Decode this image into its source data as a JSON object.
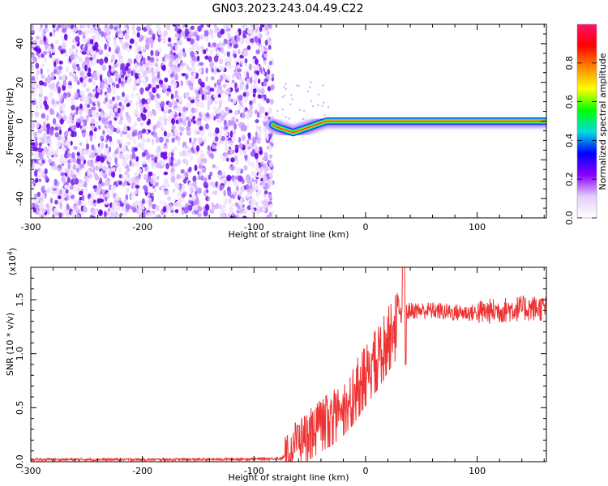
{
  "title": "GN03.2023.243.04.49.C22",
  "chart_data": [
    {
      "type": "heatmap",
      "title": "GN03.2023.243.04.49.C22",
      "xlabel": "Height of straight line (km)",
      "ylabel": "Frequency (Hz)",
      "xlim": [
        -300,
        162
      ],
      "ylim": [
        -50,
        50
      ],
      "x_ticks": [
        "-300",
        "-200",
        "-100",
        "0",
        "100"
      ],
      "y_ticks": [
        "40",
        "20",
        "0",
        "-20",
        "-40"
      ],
      "noise_region_end_km": -83,
      "signal_line": {
        "x": [
          -83,
          -80,
          -75,
          -70,
          -65,
          -60,
          -55,
          -50,
          -45,
          -40,
          -35,
          -30,
          -20,
          -10,
          0,
          20,
          50,
          100,
          162
        ],
        "y": [
          -2,
          -3,
          -4,
          -5,
          -6,
          -5,
          -4,
          -3,
          -2,
          -1,
          0,
          0,
          0,
          0,
          0,
          0,
          0,
          0,
          0
        ]
      },
      "colorbar": {
        "label": "Normalized spectral amplitude",
        "range": [
          0,
          1
        ],
        "ticks": [
          "0.0",
          "0.2",
          "0.4",
          "0.6",
          "0.8"
        ],
        "colors": [
          "#ffffff",
          "#e4ccff",
          "#8800ff",
          "#0000ff",
          "#00dddd",
          "#00ff00",
          "#ffff00",
          "#ff8800",
          "#ff0000",
          "#ff1166"
        ]
      }
    },
    {
      "type": "line",
      "xlabel": "Height of straight line (km)",
      "ylabel": "SNR (10 * v/v)",
      "scale_label": "(x10",
      "scale_exp": "4",
      "scale_close": ")",
      "xlim": [
        -300,
        162
      ],
      "ylim": [
        0,
        18000
      ],
      "x_ticks": [
        "-300",
        "-200",
        "-100",
        "0",
        "100"
      ],
      "y_ticks": [
        "0.0",
        "0.5",
        "1.0",
        "1.5"
      ],
      "series": [
        {
          "color": "#ee3333",
          "x": [
            -300,
            -250,
            -200,
            -150,
            -100,
            -75,
            -70,
            -65,
            -60,
            -55,
            -50,
            -40,
            -30,
            -20,
            -10,
            0,
            10,
            20,
            30,
            40,
            60,
            80,
            100,
            120,
            140,
            162
          ],
          "y": [
            200,
            200,
            200,
            200,
            250,
            300,
            800,
            1800,
            2200,
            2500,
            3000,
            3800,
            4500,
            5500,
            6800,
            8500,
            10000,
            11800,
            13500,
            14000,
            14000,
            13800,
            13800,
            14000,
            14200,
            14200
          ]
        }
      ]
    }
  ]
}
